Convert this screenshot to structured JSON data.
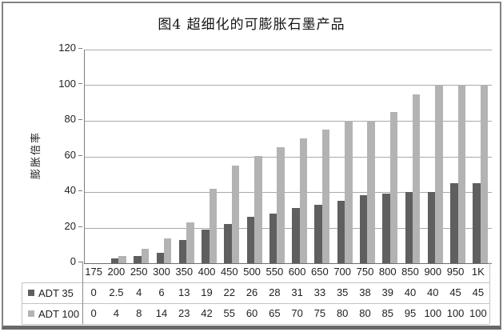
{
  "chart_data": {
    "type": "bar",
    "title": "图4 超细化的可膨胀石墨产品",
    "xlabel": "",
    "ylabel": "膨胀倍率",
    "ylim": [
      0,
      120
    ],
    "yticks": [
      0,
      20,
      40,
      60,
      80,
      100,
      120
    ],
    "grid": true,
    "legend_position": "data-table-left",
    "categories": [
      "175",
      "200",
      "250",
      "300",
      "350",
      "400",
      "450",
      "500",
      "550",
      "600",
      "650",
      "700",
      "750",
      "800",
      "850",
      "900",
      "950",
      "1K"
    ],
    "series": [
      {
        "name": "ADT 35",
        "color": "#5f5f5f",
        "values": [
          0,
          2.5,
          4,
          6,
          13,
          19,
          22,
          26,
          28,
          31,
          33,
          35,
          38,
          39,
          40,
          40,
          45,
          45
        ]
      },
      {
        "name": "ADT 100",
        "color": "#b3b3b3",
        "values": [
          0,
          4,
          8,
          14,
          23,
          42,
          55,
          60,
          65,
          70,
          75,
          80,
          80,
          85,
          95,
          100,
          100,
          100
        ]
      }
    ]
  },
  "colors": {
    "bar_dark": "#5f5f5f",
    "bar_light": "#b3b3b3",
    "gridline": "#a9a9a9",
    "axis": "#7e7e7e",
    "table_border": "#c3c3c3",
    "frame_border": "#828282",
    "text": "#1f1f1f",
    "background": "#ffffff"
  }
}
